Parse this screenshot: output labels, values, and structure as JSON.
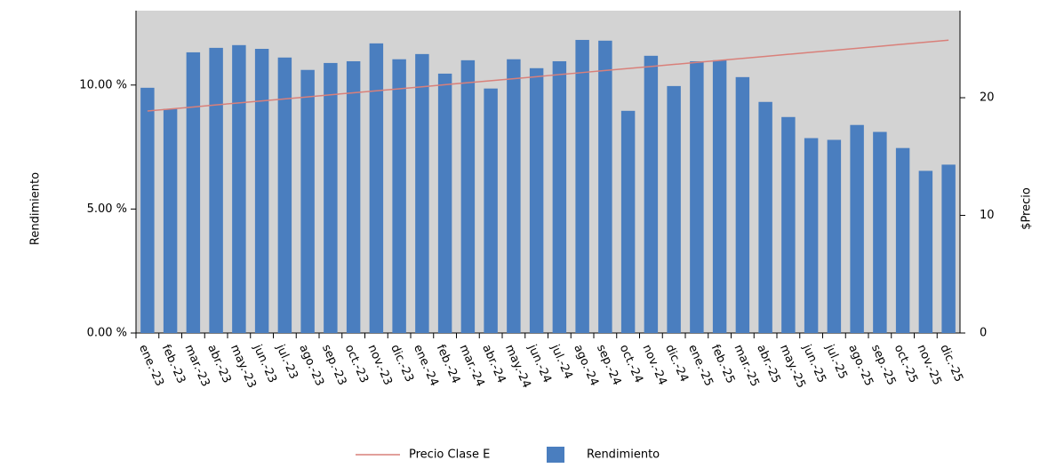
{
  "chart_data": {
    "type": "bar_line",
    "y_label": "Rendimiento",
    "y2_label": "$Precio",
    "categories": [
      "ene.-23",
      "feb.-23",
      "mar.-23",
      "abr.-23",
      "may.-23",
      "jun.-23",
      "jul.-23",
      "ago.-23",
      "sep.-23",
      "oct.-23",
      "nov.-23",
      "dic.-23",
      "ene.-24",
      "feb.-24",
      "mar.-24",
      "abr.-24",
      "may.-24",
      "jun.-24",
      "jul.-24",
      "ago.-24",
      "sep.-24",
      "oct.-24",
      "nov.-24",
      "dic.-24",
      "ene.-25",
      "feb.-25",
      "mar.-25",
      "abr.-25",
      "may.-25",
      "jun.-25",
      "jul.-25",
      "ago.-25",
      "sep.-25",
      "oct.-25",
      "nov.-25",
      "dic.-25"
    ],
    "series": [
      {
        "name": "Precio Clase E",
        "type": "line",
        "axis": "y2",
        "color": "#d9807a",
        "values": [
          18.87,
          19.04,
          19.21,
          19.39,
          19.56,
          19.73,
          19.9,
          20.07,
          20.25,
          20.42,
          20.59,
          20.76,
          20.93,
          21.11,
          21.28,
          21.45,
          21.62,
          21.79,
          21.97,
          22.14,
          22.31,
          22.48,
          22.65,
          22.83,
          23.0,
          23.17,
          23.34,
          23.51,
          23.69,
          23.86,
          24.03,
          24.2,
          24.37,
          24.55,
          24.72,
          24.89
        ]
      },
      {
        "name": "Rendimiento",
        "type": "bar",
        "color": "#4a7ebf",
        "values": [
          9.89,
          9.04,
          11.32,
          11.5,
          11.61,
          11.46,
          11.11,
          10.61,
          10.89,
          10.96,
          11.68,
          11.04,
          11.25,
          10.46,
          11.0,
          9.86,
          11.04,
          10.68,
          10.96,
          11.82,
          11.79,
          8.96,
          11.18,
          9.96,
          10.96,
          11.0,
          10.32,
          9.32,
          8.71,
          7.86,
          7.79,
          8.39,
          8.11,
          7.46,
          6.54,
          6.79
        ]
      }
    ],
    "ylim": [
      0,
      13
    ],
    "yticks": [
      {
        "value": 0,
        "label": "0.00 %"
      },
      {
        "value": 5,
        "label": "5.00 %"
      },
      {
        "value": 10,
        "label": "10.00 %"
      }
    ],
    "y2lim": [
      0,
      27.4
    ],
    "y2ticks": [
      0,
      10,
      20
    ],
    "plot_background": "#d3d3d3"
  }
}
